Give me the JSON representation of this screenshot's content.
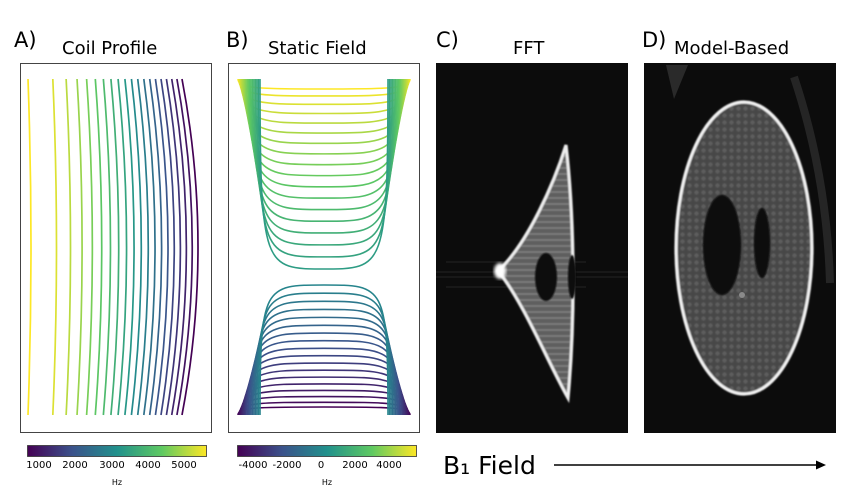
{
  "panels": [
    {
      "letter": "A)",
      "title": "Coil Profile"
    },
    {
      "letter": "B)",
      "title": "Static Field"
    },
    {
      "letter": "C)",
      "title": "FFT"
    },
    {
      "letter": "D)",
      "title": "Model-Based"
    }
  ],
  "colorbars": [
    {
      "ticks": [
        "1000",
        "2000",
        "3000",
        "4000",
        "5000"
      ],
      "unit": "Hz"
    },
    {
      "ticks": [
        "-4000",
        "-2000",
        "0",
        "2000",
        "4000"
      ],
      "unit": "Hz"
    }
  ],
  "b1_label": "B₁ Field",
  "colors": {
    "viridis": [
      "#440154",
      "#3b528b",
      "#21918c",
      "#5ec962",
      "#fde725"
    ],
    "image_bg": "#0c0c0c"
  }
}
